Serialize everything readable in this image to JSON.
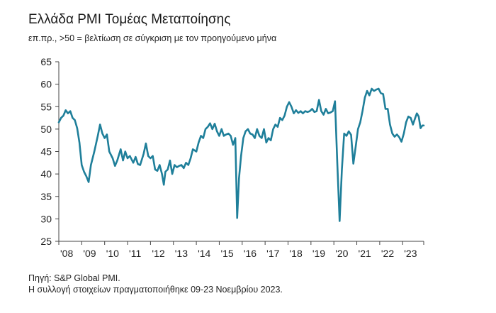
{
  "chart_data": {
    "type": "line",
    "title": "Ελλάδα PMI Τομέας Μεταποίησης",
    "subtitle": "επ.πρ., >50 = βελτίωση σε σύγκριση με τον προηγούμενο μήνα",
    "xlabel": "",
    "ylabel": "",
    "ylim": [
      25,
      65
    ],
    "yticks": [
      25,
      30,
      35,
      40,
      45,
      50,
      55,
      60,
      65
    ],
    "xlim": [
      2008.0,
      2023.92
    ],
    "xtick_labels": [
      "'08",
      "'09",
      "'10",
      "'11",
      "'12",
      "'13",
      "'14",
      "'15",
      "'16",
      "'17",
      "'18",
      "'19",
      "'20",
      "'21",
      "'22",
      "'23"
    ],
    "grid": false,
    "line_color": "#1f7f9a",
    "series": [
      {
        "name": "",
        "points": [
          [
            2008.0,
            51.5
          ],
          [
            2008.1,
            52.5
          ],
          [
            2008.2,
            53.0
          ],
          [
            2008.3,
            54.2
          ],
          [
            2008.4,
            53.5
          ],
          [
            2008.5,
            54.0
          ],
          [
            2008.6,
            52.5
          ],
          [
            2008.7,
            52.0
          ],
          [
            2008.8,
            50.2
          ],
          [
            2008.9,
            47.0
          ],
          [
            2009.0,
            42.0
          ],
          [
            2009.1,
            40.5
          ],
          [
            2009.2,
            39.5
          ],
          [
            2009.3,
            38.2
          ],
          [
            2009.4,
            42.0
          ],
          [
            2009.55,
            45.0
          ],
          [
            2009.7,
            48.5
          ],
          [
            2009.8,
            51.0
          ],
          [
            2009.9,
            49.0
          ],
          [
            2010.0,
            48.0
          ],
          [
            2010.1,
            48.8
          ],
          [
            2010.2,
            45.0
          ],
          [
            2010.35,
            43.5
          ],
          [
            2010.45,
            41.8
          ],
          [
            2010.55,
            43.0
          ],
          [
            2010.7,
            45.5
          ],
          [
            2010.8,
            43.0
          ],
          [
            2010.9,
            45.0
          ],
          [
            2011.0,
            43.5
          ],
          [
            2011.1,
            44.0
          ],
          [
            2011.25,
            42.5
          ],
          [
            2011.35,
            43.8
          ],
          [
            2011.45,
            42.2
          ],
          [
            2011.55,
            42.0
          ],
          [
            2011.7,
            44.5
          ],
          [
            2011.8,
            46.8
          ],
          [
            2011.9,
            44.0
          ],
          [
            2012.0,
            43.5
          ],
          [
            2012.1,
            44.0
          ],
          [
            2012.2,
            41.0
          ],
          [
            2012.3,
            40.7
          ],
          [
            2012.4,
            42.0
          ],
          [
            2012.5,
            40.0
          ],
          [
            2012.58,
            37.6
          ],
          [
            2012.65,
            40.5
          ],
          [
            2012.75,
            41.0
          ],
          [
            2012.85,
            43.0
          ],
          [
            2012.95,
            40.0
          ],
          [
            2013.05,
            42.0
          ],
          [
            2013.15,
            41.5
          ],
          [
            2013.25,
            41.8
          ],
          [
            2013.35,
            42.0
          ],
          [
            2013.45,
            41.3
          ],
          [
            2013.55,
            42.5
          ],
          [
            2013.65,
            42.0
          ],
          [
            2013.75,
            43.5
          ],
          [
            2013.85,
            45.5
          ],
          [
            2014.0,
            45.0
          ],
          [
            2014.1,
            47.0
          ],
          [
            2014.2,
            48.5
          ],
          [
            2014.3,
            48.0
          ],
          [
            2014.4,
            50.0
          ],
          [
            2014.5,
            50.5
          ],
          [
            2014.6,
            51.3
          ],
          [
            2014.7,
            50.0
          ],
          [
            2014.8,
            51.2
          ],
          [
            2014.9,
            49.5
          ],
          [
            2015.0,
            48.5
          ],
          [
            2015.1,
            50.0
          ],
          [
            2015.2,
            48.5
          ],
          [
            2015.3,
            48.8
          ],
          [
            2015.4,
            49.0
          ],
          [
            2015.5,
            48.5
          ],
          [
            2015.6,
            46.5
          ],
          [
            2015.7,
            48.0
          ],
          [
            2015.78,
            30.2
          ],
          [
            2015.86,
            39.0
          ],
          [
            2015.95,
            44.0
          ],
          [
            2016.05,
            48.0
          ],
          [
            2016.15,
            49.5
          ],
          [
            2016.25,
            50.0
          ],
          [
            2016.35,
            49.0
          ],
          [
            2016.45,
            48.8
          ],
          [
            2016.55,
            48.0
          ],
          [
            2016.65,
            50.0
          ],
          [
            2016.75,
            48.5
          ],
          [
            2016.85,
            48.0
          ],
          [
            2016.95,
            50.0
          ],
          [
            2017.05,
            47.0
          ],
          [
            2017.15,
            48.0
          ],
          [
            2017.25,
            47.5
          ],
          [
            2017.35,
            50.0
          ],
          [
            2017.45,
            51.0
          ],
          [
            2017.55,
            50.5
          ],
          [
            2017.65,
            52.5
          ],
          [
            2017.75,
            52.0
          ],
          [
            2017.85,
            53.0
          ],
          [
            2017.95,
            55.0
          ],
          [
            2018.05,
            56.0
          ],
          [
            2018.15,
            55.0
          ],
          [
            2018.25,
            53.5
          ],
          [
            2018.35,
            54.2
          ],
          [
            2018.45,
            53.6
          ],
          [
            2018.55,
            54.0
          ],
          [
            2018.65,
            53.5
          ],
          [
            2018.75,
            54.0
          ],
          [
            2018.85,
            53.8
          ],
          [
            2018.95,
            54.0
          ],
          [
            2019.05,
            54.5
          ],
          [
            2019.15,
            53.8
          ],
          [
            2019.25,
            54.0
          ],
          [
            2019.35,
            56.5
          ],
          [
            2019.45,
            54.0
          ],
          [
            2019.55,
            53.2
          ],
          [
            2019.65,
            54.5
          ],
          [
            2019.75,
            53.5
          ],
          [
            2019.85,
            53.7
          ],
          [
            2019.95,
            54.0
          ],
          [
            2020.05,
            56.2
          ],
          [
            2020.15,
            42.5
          ],
          [
            2020.25,
            29.5
          ],
          [
            2020.35,
            41.0
          ],
          [
            2020.45,
            49.0
          ],
          [
            2020.55,
            48.5
          ],
          [
            2020.65,
            49.5
          ],
          [
            2020.75,
            48.7
          ],
          [
            2020.85,
            42.3
          ],
          [
            2020.95,
            46.0
          ],
          [
            2021.05,
            50.0
          ],
          [
            2021.15,
            51.5
          ],
          [
            2021.25,
            54.0
          ],
          [
            2021.35,
            57.0
          ],
          [
            2021.45,
            58.5
          ],
          [
            2021.55,
            57.5
          ],
          [
            2021.65,
            59.0
          ],
          [
            2021.75,
            58.5
          ],
          [
            2021.85,
            58.8
          ],
          [
            2021.95,
            59.0
          ],
          [
            2022.05,
            58.0
          ],
          [
            2022.15,
            57.8
          ],
          [
            2022.25,
            54.5
          ],
          [
            2022.35,
            54.5
          ],
          [
            2022.45,
            51.0
          ],
          [
            2022.55,
            49.0
          ],
          [
            2022.65,
            48.3
          ],
          [
            2022.75,
            48.8
          ],
          [
            2022.85,
            48.2
          ],
          [
            2022.95,
            47.2
          ],
          [
            2023.05,
            49.0
          ],
          [
            2023.15,
            51.5
          ],
          [
            2023.25,
            52.8
          ],
          [
            2023.35,
            52.5
          ],
          [
            2023.45,
            51.0
          ],
          [
            2023.55,
            52.5
          ],
          [
            2023.62,
            53.5
          ],
          [
            2023.7,
            52.8
          ],
          [
            2023.78,
            50.2
          ],
          [
            2023.86,
            50.8
          ],
          [
            2023.92,
            50.8
          ]
        ]
      }
    ]
  },
  "footer": {
    "source": "Πηγή: S&P Global PMI.",
    "note": "Η συλλογή στοιχείων πραγματοποιήθηκε 09-23 Νοεμβρίου 2023."
  }
}
